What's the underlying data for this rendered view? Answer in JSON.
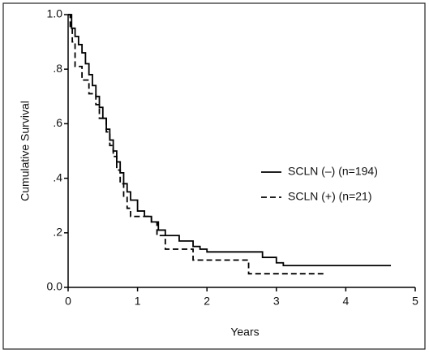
{
  "chart_data": {
    "type": "line",
    "step": true,
    "xlabel": "Years",
    "ylabel": "Cumulative Survival",
    "xlim": [
      0,
      5
    ],
    "xticks": [
      0,
      1,
      2,
      3,
      4,
      5
    ],
    "ylim": [
      0,
      1
    ],
    "yticks": [
      {
        "value": 0,
        "label": "0.0"
      },
      {
        "value": 0.2,
        "label": ".2"
      },
      {
        "value": 0.4,
        "label": ".4"
      },
      {
        "value": 0.6,
        "label": ".6"
      },
      {
        "value": 0.8,
        "label": ".8"
      },
      {
        "value": 1,
        "label": "1.0"
      }
    ],
    "legend": "right",
    "series": [
      {
        "name": "SCLN (–) (n=194)",
        "color": "#000000",
        "line_style": "solid",
        "x": [
          0,
          0.05,
          0.1,
          0.15,
          0.2,
          0.25,
          0.3,
          0.35,
          0.4,
          0.45,
          0.5,
          0.55,
          0.6,
          0.65,
          0.7,
          0.75,
          0.8,
          0.85,
          0.9,
          1.0,
          1.1,
          1.2,
          1.3,
          1.4,
          1.6,
          1.8,
          1.9,
          2.0,
          2.8,
          3.0,
          3.1,
          4.65
        ],
        "values": [
          1.0,
          0.95,
          0.92,
          0.89,
          0.86,
          0.82,
          0.78,
          0.74,
          0.7,
          0.66,
          0.62,
          0.58,
          0.54,
          0.5,
          0.46,
          0.42,
          0.38,
          0.35,
          0.32,
          0.28,
          0.26,
          0.24,
          0.21,
          0.19,
          0.17,
          0.15,
          0.14,
          0.13,
          0.11,
          0.09,
          0.08,
          0.08
        ]
      },
      {
        "name": "SCLN (+) (n=21)",
        "color": "#000000",
        "line_style": "dashed",
        "x": [
          0,
          0.03,
          0.06,
          0.1,
          0.2,
          0.3,
          0.4,
          0.45,
          0.55,
          0.6,
          0.65,
          0.7,
          0.75,
          0.8,
          0.85,
          0.9,
          1.2,
          1.28,
          1.4,
          1.8,
          2.6,
          3.7
        ],
        "values": [
          1.0,
          0.95,
          0.9,
          0.81,
          0.76,
          0.71,
          0.67,
          0.62,
          0.57,
          0.52,
          0.48,
          0.43,
          0.38,
          0.33,
          0.29,
          0.26,
          0.24,
          0.19,
          0.14,
          0.1,
          0.05,
          0.05
        ]
      }
    ]
  }
}
